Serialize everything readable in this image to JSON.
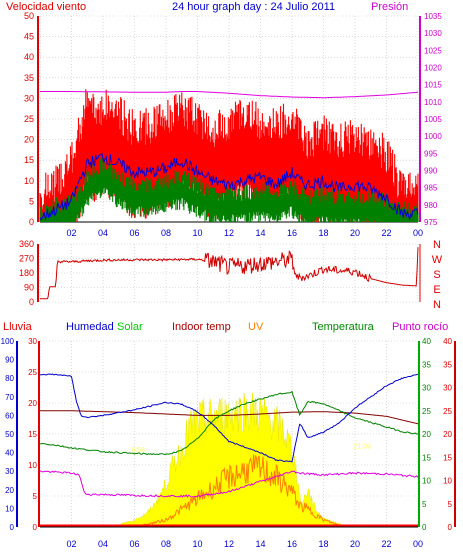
{
  "header": {
    "wind_label": "Velocidad viento",
    "title": "24 hour graph day : 24 Julio 2011",
    "pressure_label": "Presión"
  },
  "colors": {
    "wind_gust": "#ff0000",
    "wind_avg": "#008000",
    "wind_mean": "#0000dd",
    "pressure": "#e000e0",
    "direction": "#d00000",
    "humidity": "#0000cc",
    "solar": "#ffff00",
    "indoor_temp": "#800000",
    "uv": "#ff8000",
    "temperature": "#008000",
    "dew_point": "#e000e0",
    "rain": "#ff0000",
    "axis_red": "#e00000",
    "axis_blue": "#0000cc",
    "axis_green": "#00aa00",
    "axis_pink": "#cc00cc",
    "grid": "#c0c0c0"
  },
  "chart_data": [
    {
      "id": "wind_pressure",
      "type": "line",
      "title": "24 hour graph day : 24 Julio 2011",
      "ylabel": "Velocidad viento",
      "ylabel_right": "Presión",
      "ylim": [
        0,
        50
      ],
      "yticks": [
        0,
        5,
        10,
        15,
        20,
        25,
        30,
        35,
        40,
        45,
        50
      ],
      "ylim_right": [
        975,
        1035
      ],
      "yticks_right": [
        975,
        980,
        985,
        990,
        995,
        1000,
        1005,
        1010,
        1015,
        1020,
        1025,
        1030,
        1035
      ],
      "xlim": [
        0,
        24
      ],
      "xticks": [
        "02",
        "04",
        "06",
        "08",
        "10",
        "12",
        "14",
        "16",
        "18",
        "20",
        "22",
        "00"
      ],
      "grid": true,
      "series": [
        {
          "id": "gust",
          "axis": "left",
          "x": [
            0,
            1,
            2,
            2.5,
            3,
            3.5,
            4,
            5,
            6,
            7,
            8,
            9,
            10,
            11,
            12,
            13,
            14,
            15,
            16,
            16.5,
            17,
            18,
            19,
            20,
            21,
            22,
            22.5,
            23,
            24
          ],
          "values": [
            2,
            5,
            10,
            18,
            25,
            22,
            24,
            22,
            18,
            19,
            21,
            23,
            21,
            18,
            20,
            22,
            20,
            19,
            22,
            18,
            15,
            17,
            15,
            17,
            15,
            12,
            8,
            3,
            3
          ]
        },
        {
          "id": "mean",
          "axis": "left",
          "x": [
            0,
            1,
            2,
            2.5,
            3,
            3.5,
            4,
            5,
            6,
            7,
            8,
            9,
            10,
            11,
            12,
            13,
            14,
            15,
            16,
            16.5,
            17,
            18,
            19,
            20,
            21,
            22,
            22.5,
            23,
            24
          ],
          "values": [
            1,
            3,
            5,
            10,
            14,
            15,
            16,
            14,
            12,
            12,
            13,
            15,
            12,
            10,
            9,
            10,
            11,
            9,
            12,
            10,
            9,
            10,
            8,
            9,
            8,
            6,
            4,
            2,
            2
          ]
        },
        {
          "id": "average",
          "axis": "left",
          "x": [
            0,
            1,
            2,
            2.5,
            3,
            3.5,
            4,
            5,
            6,
            7,
            8,
            9,
            10,
            11,
            12,
            13,
            14,
            15,
            16,
            16.5,
            17,
            18,
            19,
            20,
            21,
            22,
            22.5,
            23,
            24
          ],
          "values": [
            0,
            2,
            3,
            6,
            9,
            11,
            12,
            9,
            7,
            7,
            8,
            9,
            7,
            5,
            5,
            5,
            6,
            5,
            7,
            5,
            4,
            5,
            4,
            4,
            4,
            3,
            2,
            1,
            1
          ]
        },
        {
          "id": "pressure",
          "axis": "right",
          "x": [
            0,
            2,
            4,
            6,
            8,
            9,
            10,
            12,
            14,
            16,
            18,
            20,
            22,
            24
          ],
          "values": [
            1013,
            1013,
            1012.9,
            1012.8,
            1012.8,
            1013,
            1013,
            1012.5,
            1011.8,
            1011.4,
            1011.2,
            1011.5,
            1012,
            1012.8
          ]
        }
      ]
    },
    {
      "id": "wind_direction",
      "type": "line",
      "ylim": [
        0,
        360
      ],
      "yticks": [
        0,
        90,
        180,
        270,
        360
      ],
      "right_labels": [
        "N",
        "W",
        "S",
        "E",
        "N"
      ],
      "xlim": [
        0,
        24
      ],
      "grid": true,
      "series": [
        {
          "id": "direction",
          "x": [
            0,
            0.5,
            0.6,
            1.0,
            1.1,
            2,
            3,
            4,
            6,
            8,
            10,
            11,
            12,
            13,
            14,
            15,
            16,
            16.3,
            17,
            18,
            19,
            20,
            21,
            22,
            23,
            23.9,
            24
          ],
          "values": [
            20,
            20,
            95,
            95,
            250,
            250,
            255,
            260,
            262,
            262,
            265,
            250,
            215,
            225,
            240,
            250,
            265,
            150,
            160,
            205,
            195,
            190,
            145,
            120,
            105,
            100,
            340
          ]
        }
      ]
    },
    {
      "id": "weather_bottom",
      "type": "line",
      "axes_labels": {
        "rain": "Lluvia",
        "humidity": "Humedad",
        "solar": "Solar",
        "indoor": "Indoor temp",
        "uv": "UV",
        "temperature": "Temperatura",
        "dew": "Punto rocío"
      },
      "axis_rain": [
        0,
        5,
        10,
        15,
        20,
        25,
        30
      ],
      "axis_humidity": [
        0,
        10,
        20,
        30,
        40,
        50,
        60,
        70,
        80,
        90,
        100
      ],
      "axis_temperature": [
        0,
        5,
        10,
        15,
        20,
        25,
        30,
        35,
        40
      ],
      "axis_dew": [
        0,
        5,
        10,
        15,
        20,
        25,
        30,
        35,
        40
      ],
      "xlim": [
        0,
        24
      ],
      "xticks": [
        "02",
        "04",
        "06",
        "08",
        "10",
        "12",
        "14",
        "16",
        "18",
        "20",
        "22",
        "00"
      ],
      "grid": true,
      "annotations": [
        {
          "x": 5.8,
          "y_hum": 36,
          "text": "6:56"
        },
        {
          "x": 19.9,
          "y_hum": 38,
          "text": "21:09"
        }
      ],
      "series": [
        {
          "id": "humidity",
          "axis": "humidity",
          "x": [
            0,
            1,
            2,
            2.3,
            2.6,
            3,
            4,
            6,
            8,
            9,
            10,
            11,
            12,
            13,
            14,
            15,
            16,
            16.5,
            17,
            18,
            19,
            20,
            21,
            22,
            23,
            24
          ],
          "values": [
            82,
            82,
            81,
            68,
            60,
            59,
            60,
            63,
            67,
            66,
            62,
            55,
            46,
            43,
            40,
            36,
            35,
            56,
            48,
            51,
            56,
            64,
            70,
            76,
            80,
            82
          ]
        },
        {
          "id": "indoor_temp",
          "axis": "temperature",
          "x": [
            0,
            2,
            4,
            6,
            8,
            10,
            12,
            14,
            16,
            18,
            20,
            22,
            24
          ],
          "values": [
            25,
            25,
            24.8,
            24.6,
            24.3,
            24,
            24,
            24.3,
            24.7,
            24.8,
            24.5,
            23.8,
            22.2
          ]
        },
        {
          "id": "temperature",
          "axis": "temperature",
          "x": [
            0,
            1,
            2,
            3,
            4,
            6,
            8,
            9,
            10,
            11,
            12,
            13,
            14,
            15,
            16,
            16.5,
            17,
            18,
            19,
            20,
            21,
            22,
            23,
            24
          ],
          "values": [
            18,
            17.6,
            17,
            16.6,
            16.2,
            15.8,
            15.6,
            16.4,
            19,
            23,
            25,
            26.5,
            27.5,
            28.5,
            29,
            24,
            27,
            26.5,
            25,
            23.5,
            22.5,
            21.5,
            20.5,
            20
          ]
        },
        {
          "id": "dew_point",
          "axis": "dew",
          "x": [
            0,
            2,
            2.5,
            2.8,
            3,
            4,
            6,
            8,
            10,
            12,
            14,
            15,
            16,
            16.5,
            18,
            20,
            22,
            24
          ],
          "values": [
            12,
            11.6,
            11.2,
            7.5,
            7,
            7,
            6.8,
            6.7,
            6.6,
            7.6,
            9.8,
            10.8,
            12,
            11.6,
            11.2,
            11.6,
            11.4,
            10.8
          ]
        },
        {
          "id": "solar",
          "axis": "humidity",
          "x": [
            0,
            5,
            5.2,
            6,
            6.8,
            7.2,
            7.6,
            8.0,
            8.4,
            9,
            9.5,
            10,
            11,
            12,
            13,
            14,
            15,
            15.5,
            16,
            16.3,
            16.6,
            17,
            17.5,
            18,
            19,
            19.4,
            20,
            24
          ],
          "values": [
            0,
            0,
            2,
            4,
            8,
            12,
            18,
            25,
            35,
            45,
            58,
            62,
            64,
            66,
            68,
            66,
            60,
            55,
            45,
            30,
            12,
            22,
            10,
            5,
            2,
            0,
            0,
            0
          ]
        },
        {
          "id": "uv",
          "axis": "humidity",
          "x": [
            0,
            6,
            7,
            8,
            9,
            10,
            11,
            12,
            13,
            14,
            15,
            16,
            16.5,
            17,
            18,
            19,
            20,
            24
          ],
          "values": [
            0,
            0,
            2,
            4,
            10,
            16,
            22,
            28,
            32,
            33,
            28,
            20,
            12,
            10,
            4,
            1,
            0,
            0
          ]
        },
        {
          "id": "rain",
          "axis": "rain",
          "x": [
            0,
            24
          ],
          "values": [
            0,
            0
          ]
        }
      ]
    }
  ]
}
